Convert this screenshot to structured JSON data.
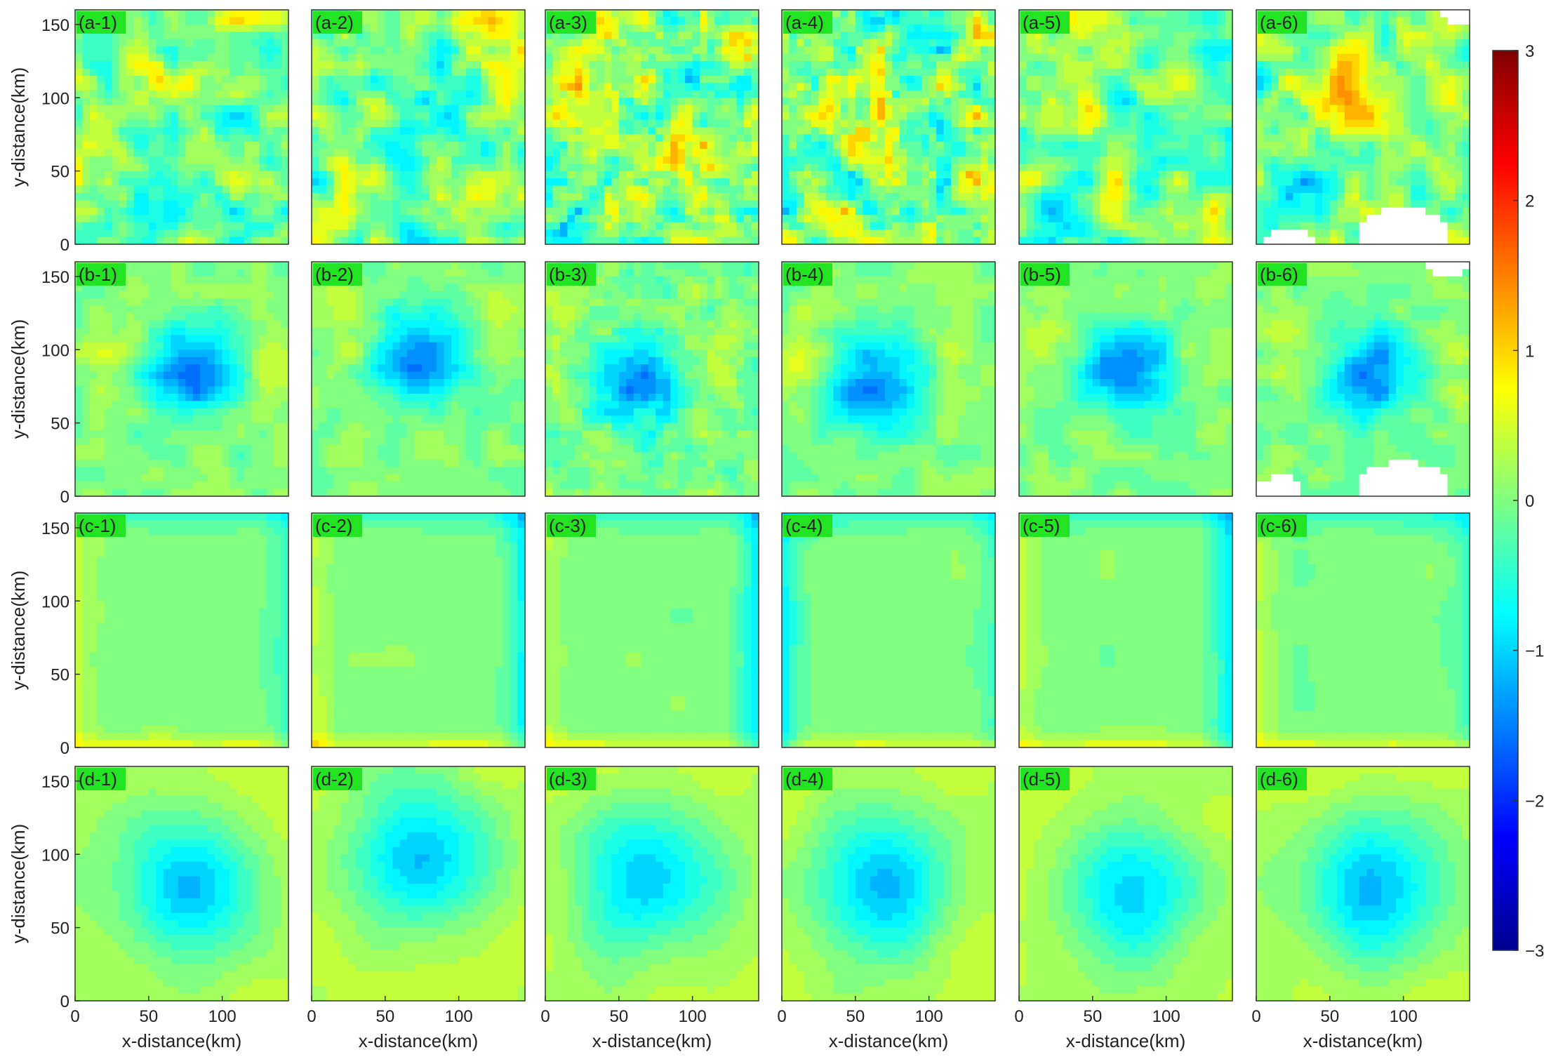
{
  "chart_data": {
    "type": "contour",
    "rows": [
      "a",
      "b",
      "c",
      "d"
    ],
    "columns": [
      "1",
      "2",
      "3",
      "4",
      "5",
      "6"
    ],
    "panel_labels": [
      [
        "(a-1)",
        "(a-2)",
        "(a-3)",
        "(a-4)",
        "(a-5)",
        "(a-6)"
      ],
      [
        "(b-1)",
        "(b-2)",
        "(b-3)",
        "(b-4)",
        "(b-5)",
        "(b-6)"
      ],
      [
        "(c-1)",
        "(c-2)",
        "(c-3)",
        "(c-4)",
        "(c-5)",
        "(c-6)"
      ],
      [
        "(d-1)",
        "(d-2)",
        "(d-3)",
        "(d-4)",
        "(d-5)",
        "(d-6)"
      ]
    ],
    "xlabel": "x-distance(km)",
    "ylabel": "y-distance(km)",
    "xlim": [
      0,
      145
    ],
    "ylim": [
      0,
      160
    ],
    "xticks": [
      0,
      50,
      100
    ],
    "yticks": [
      0,
      50,
      100,
      150
    ],
    "colorbar": {
      "range": [
        -3,
        3
      ],
      "ticks": [
        3,
        2,
        1,
        0,
        -1,
        -2,
        -3
      ],
      "tick_labels": [
        "3",
        "2",
        "1",
        "0",
        "−1",
        "−2",
        "−3"
      ],
      "colormap": [
        "#00008f",
        "#0000ff",
        "#0080ff",
        "#00ffff",
        "#80ff80",
        "#ffff00",
        "#ff8000",
        "#ff0000",
        "#800000"
      ],
      "contour_color": "#000000"
    },
    "features": {
      "row_a": "irregular multi-extremum fields",
      "row_b": "single cyclonic minimum near (75, 85) km",
      "row_c": "near-zero fields with steep edge gradients",
      "row_d": "smooth single minimum near (75, 80) km",
      "masked_panels": [
        "(a-6)",
        "(b-6)"
      ]
    }
  }
}
